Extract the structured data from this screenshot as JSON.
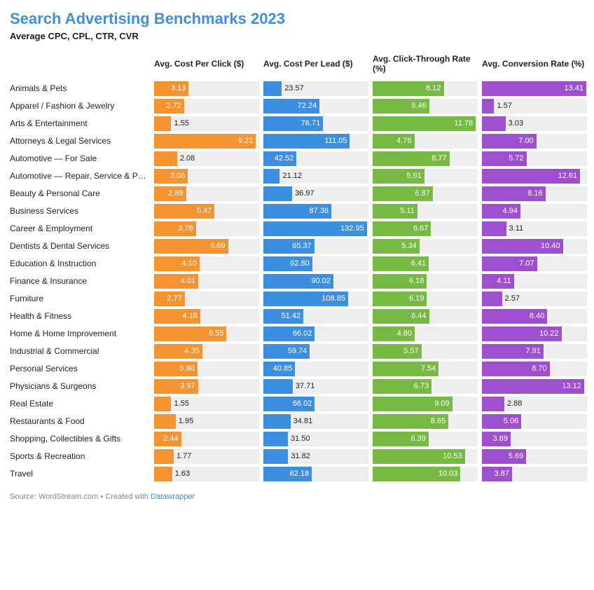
{
  "title": "Search Advertising Benchmarks 2023",
  "title_color": "#3b8ee0",
  "subtitle": "Average CPC, CPL, CTR, CVR",
  "source_prefix": "Source: WordStream.com • Created with ",
  "source_link_text": "Datawrapper",
  "background_color": "#ffffff",
  "row_bg_color": "#eeeeee",
  "columns": [
    {
      "header": "Avg. Cost Per Click ($)",
      "color": "#f59331",
      "max": 9.5
    },
    {
      "header": "Avg. Cost Per Lead ($)",
      "color": "#3b8ee0",
      "max": 135
    },
    {
      "header": "Avg. Click-Through Rate (%)",
      "color": "#76b943",
      "max": 12.0
    },
    {
      "header": "Avg. Conversion Rate (%)",
      "color": "#9e4fcf",
      "max": 13.5
    }
  ],
  "rows": [
    {
      "label": "Animals & Pets",
      "values": [
        3.13,
        23.57,
        8.12,
        13.41
      ]
    },
    {
      "label": "Apparel / Fashion & Jewelry",
      "values": [
        2.72,
        72.24,
        6.46,
        1.57
      ]
    },
    {
      "label": "Arts & Entertainment",
      "values": [
        1.55,
        76.71,
        11.78,
        3.03
      ]
    },
    {
      "label": "Attorneys & Legal Services",
      "values": [
        9.21,
        111.05,
        4.76,
        7.0
      ]
    },
    {
      "label": "Automotive — For Sale",
      "values": [
        2.08,
        42.52,
        8.77,
        5.72
      ]
    },
    {
      "label": "Automotive — Repair, Service & Parts",
      "values": [
        3.06,
        21.12,
        5.91,
        12.61
      ]
    },
    {
      "label": "Beauty & Personal Care",
      "values": [
        2.89,
        36.97,
        6.87,
        8.16
      ]
    },
    {
      "label": "Business Services",
      "values": [
        5.47,
        87.36,
        5.11,
        4.94
      ]
    },
    {
      "label": "Career & Employment",
      "values": [
        3.78,
        132.95,
        6.67,
        3.11
      ]
    },
    {
      "label": "Dentists & Dental Services",
      "values": [
        6.69,
        65.37,
        5.34,
        10.4
      ]
    },
    {
      "label": "Education & Instruction",
      "values": [
        4.1,
        62.8,
        6.41,
        7.07
      ]
    },
    {
      "label": "Finance & Insurance",
      "values": [
        4.01,
        90.02,
        6.18,
        4.11
      ]
    },
    {
      "label": "Furniture",
      "values": [
        2.77,
        108.85,
        6.19,
        2.57
      ]
    },
    {
      "label": "Health & Fitness",
      "values": [
        4.18,
        51.42,
        6.44,
        8.4
      ]
    },
    {
      "label": "Home & Home Improvement",
      "values": [
        6.55,
        66.02,
        4.8,
        10.22
      ]
    },
    {
      "label": "Industrial & Commercial",
      "values": [
        4.35,
        59.74,
        5.57,
        7.91
      ]
    },
    {
      "label": "Personal Services",
      "values": [
        3.9,
        40.85,
        7.54,
        8.7
      ]
    },
    {
      "label": "Physicians & Surgeons",
      "values": [
        3.97,
        37.71,
        6.73,
        13.12
      ]
    },
    {
      "label": "Real Estate",
      "values": [
        1.55,
        66.02,
        9.09,
        2.88
      ]
    },
    {
      "label": "Restaurants & Food",
      "values": [
        1.95,
        34.81,
        8.65,
        5.06
      ]
    },
    {
      "label": "Shopping, Collectibles & Gifts",
      "values": [
        2.44,
        31.5,
        6.39,
        3.69
      ]
    },
    {
      "label": "Sports & Recreation",
      "values": [
        1.77,
        31.82,
        10.53,
        5.69
      ]
    },
    {
      "label": "Travel",
      "values": [
        1.63,
        62.18,
        10.03,
        3.87
      ]
    }
  ]
}
